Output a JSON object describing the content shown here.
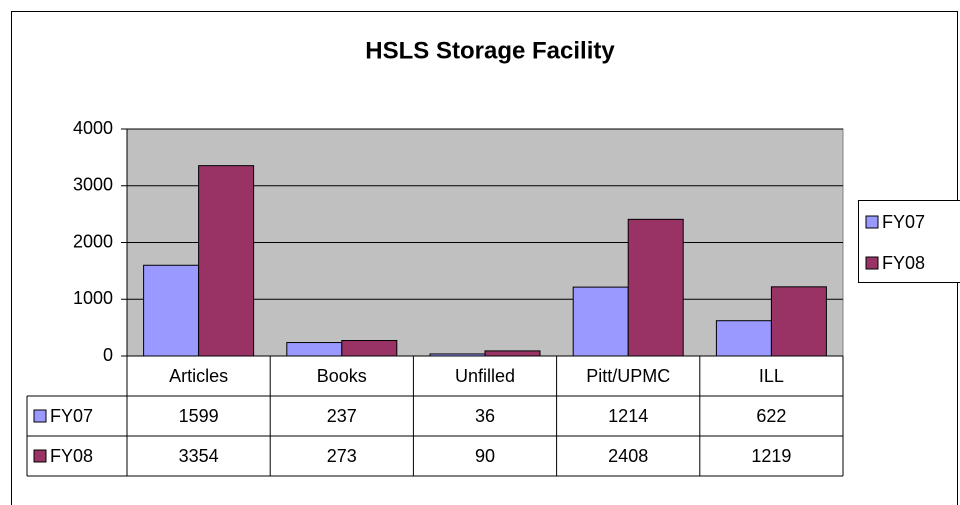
{
  "chart_data": {
    "type": "bar",
    "title": "HSLS Storage Facility",
    "categories": [
      "Articles",
      "Books",
      "Unfilled",
      "Pitt/UPMC",
      "ILL"
    ],
    "series": [
      {
        "name": "FY07",
        "color": "#9999ff",
        "values": [
          1599,
          237,
          36,
          1214,
          622
        ]
      },
      {
        "name": "FY08",
        "color": "#993366",
        "values": [
          3354,
          273,
          90,
          2408,
          1219
        ]
      }
    ],
    "ylim": [
      0,
      4000
    ],
    "yticks": [
      0,
      1000,
      2000,
      3000,
      4000
    ],
    "grid": true,
    "legend": "right"
  }
}
